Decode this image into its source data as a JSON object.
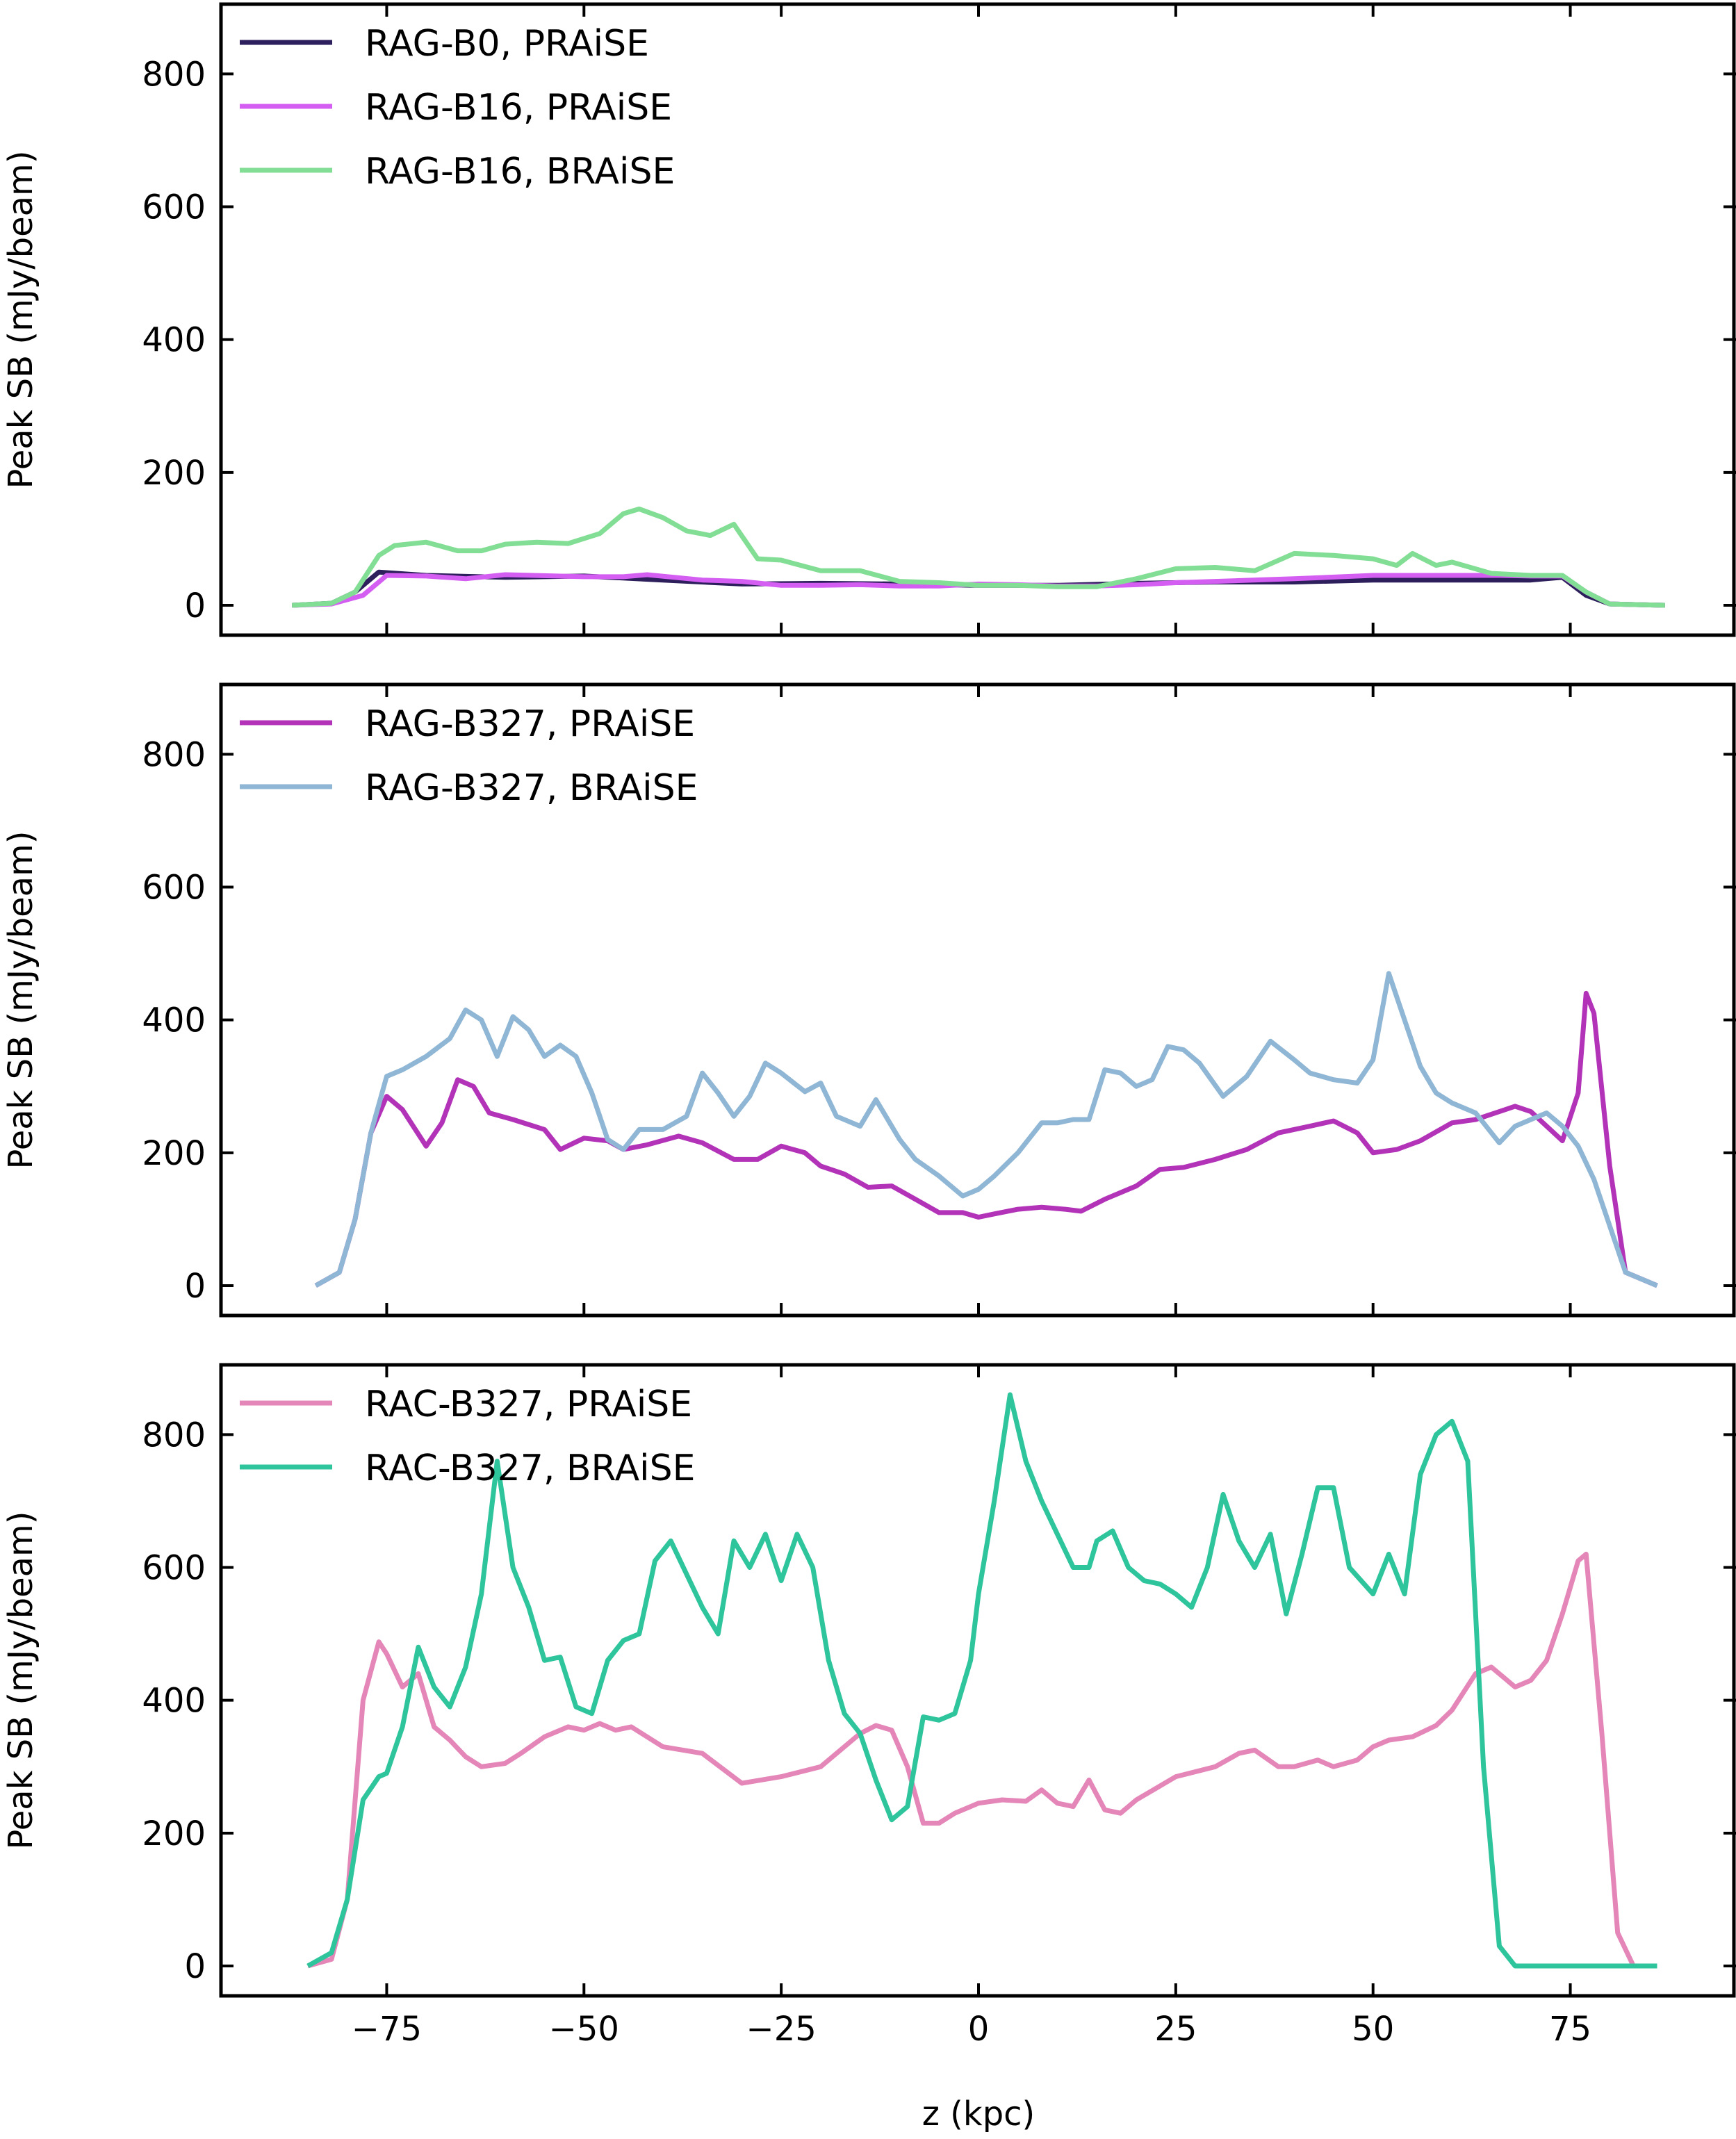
{
  "figure": {
    "xlabel": "z (kpc)",
    "ylabel": "Peak SB (mJy/beam)",
    "xticks": [
      -75,
      -50,
      -25,
      0,
      25,
      50,
      75
    ],
    "xtick_labels": [
      "−75",
      "−50",
      "−25",
      "0",
      "25",
      "50",
      "75"
    ],
    "yticks": [
      0,
      200,
      400,
      600,
      800
    ],
    "ytick_labels": [
      "0",
      "200",
      "400",
      "600",
      "800"
    ]
  },
  "chart_data": [
    {
      "type": "line",
      "xlim": [
        -96,
        96
      ],
      "ylim": [
        -45,
        905
      ],
      "legend": "upper left",
      "grid": false,
      "xlabel": "",
      "ylabel": "Peak SB (mJy/beam)",
      "series": [
        {
          "name": "RAG-B0, PRAiSE",
          "color": "#2d1e5c",
          "x": [
            -87,
            -82,
            -79,
            -76,
            -70,
            -60,
            -50,
            -40,
            -30,
            -20,
            -10,
            0,
            10,
            20,
            30,
            40,
            50,
            60,
            70,
            74,
            77,
            80,
            87
          ],
          "y": [
            0,
            3,
            20,
            50,
            45,
            42,
            44,
            38,
            32,
            33,
            32,
            30,
            30,
            33,
            35,
            35,
            38,
            38,
            38,
            42,
            15,
            2,
            0
          ]
        },
        {
          "name": "RAG-B16, PRAiSE",
          "color": "#d45ef2",
          "x": [
            -87,
            -82,
            -78,
            -75,
            -70,
            -65,
            -60,
            -50,
            -45,
            -42,
            -35,
            -30,
            -25,
            -20,
            -15,
            -10,
            -5,
            0,
            5,
            10,
            15,
            20,
            25,
            30,
            40,
            50,
            60,
            66,
            70,
            74,
            77,
            80,
            87
          ],
          "y": [
            0,
            2,
            15,
            45,
            44,
            40,
            46,
            43,
            43,
            46,
            38,
            36,
            30,
            30,
            31,
            29,
            29,
            32,
            31,
            29,
            29,
            31,
            34,
            36,
            40,
            45,
            45,
            45,
            44,
            44,
            20,
            2,
            0
          ]
        },
        {
          "name": "RAG-B16, BRAiSE",
          "color": "#82de94",
          "x": [
            -87,
            -82,
            -79,
            -76,
            -74,
            -70,
            -66,
            -63,
            -60,
            -56,
            -52,
            -48,
            -45,
            -43,
            -40,
            -37,
            -34,
            -31,
            -28,
            -25,
            -20,
            -15,
            -10,
            -5,
            0,
            5,
            10,
            15,
            20,
            25,
            30,
            35,
            40,
            45,
            50,
            53,
            55,
            58,
            60,
            65,
            70,
            74,
            77,
            80,
            87
          ],
          "y": [
            0,
            3,
            20,
            75,
            90,
            95,
            82,
            82,
            92,
            95,
            93,
            108,
            138,
            145,
            132,
            112,
            105,
            122,
            70,
            68,
            52,
            52,
            36,
            34,
            30,
            30,
            28,
            28,
            40,
            55,
            57,
            52,
            78,
            75,
            70,
            60,
            78,
            60,
            65,
            48,
            45,
            45,
            20,
            2,
            0
          ]
        }
      ]
    },
    {
      "type": "line",
      "xlim": [
        -96,
        96
      ],
      "ylim": [
        -45,
        905
      ],
      "legend": "upper left",
      "grid": false,
      "xlabel": "",
      "ylabel": "Peak SB (mJy/beam)",
      "series": [
        {
          "name": "RAG-B327, PRAiSE",
          "color": "#b232b8",
          "x": [
            -84,
            -81,
            -79,
            -77,
            -75,
            -73,
            -70,
            -68,
            -66,
            -64,
            -62,
            -59,
            -55,
            -53,
            -50,
            -47,
            -45,
            -42,
            -38,
            -35,
            -31,
            -28,
            -25,
            -22,
            -20,
            -17,
            -14,
            -11,
            -8,
            -5,
            -2,
            0,
            2,
            5,
            8,
            11,
            13,
            16,
            20,
            23,
            26,
            30,
            34,
            38,
            42,
            45,
            48,
            50,
            53,
            56,
            60,
            63,
            66,
            68,
            70,
            72,
            74,
            76,
            77,
            78,
            80,
            82,
            86
          ],
          "y": [
            0,
            20,
            100,
            230,
            285,
            265,
            210,
            245,
            310,
            300,
            260,
            250,
            235,
            205,
            222,
            218,
            205,
            212,
            225,
            215,
            190,
            190,
            210,
            200,
            180,
            168,
            148,
            150,
            130,
            110,
            110,
            103,
            108,
            115,
            118,
            115,
            112,
            130,
            150,
            175,
            178,
            190,
            205,
            230,
            240,
            248,
            230,
            200,
            205,
            218,
            245,
            250,
            262,
            270,
            262,
            240,
            218,
            290,
            440,
            410,
            180,
            20,
            0
          ]
        },
        {
          "name": "RAG-B327, BRAiSE",
          "color": "#8fb6d4",
          "x": [
            -84,
            -81,
            -79,
            -77,
            -75,
            -73,
            -70,
            -67,
            -65,
            -63,
            -61,
            -59,
            -57,
            -55,
            -53,
            -51,
            -49,
            -47,
            -45,
            -43,
            -40,
            -37,
            -35,
            -33,
            -31,
            -29,
            -27,
            -25,
            -22,
            -20,
            -18,
            -15,
            -13,
            -10,
            -8,
            -5,
            -2,
            0,
            2,
            5,
            8,
            10,
            12,
            14,
            16,
            18,
            20,
            22,
            24,
            26,
            28,
            31,
            34,
            37,
            40,
            42,
            45,
            48,
            50,
            52,
            54,
            56,
            58,
            60,
            63,
            66,
            68,
            70,
            72,
            74,
            76,
            78,
            80,
            82,
            86
          ],
          "y": [
            0,
            20,
            100,
            230,
            315,
            325,
            345,
            372,
            415,
            400,
            345,
            405,
            385,
            345,
            362,
            345,
            290,
            220,
            205,
            235,
            235,
            255,
            320,
            290,
            255,
            285,
            335,
            320,
            292,
            305,
            255,
            240,
            280,
            220,
            190,
            165,
            135,
            145,
            165,
            200,
            245,
            245,
            250,
            250,
            325,
            320,
            300,
            310,
            360,
            355,
            335,
            285,
            315,
            368,
            340,
            320,
            310,
            305,
            340,
            470,
            400,
            330,
            290,
            275,
            260,
            215,
            240,
            250,
            260,
            240,
            210,
            160,
            90,
            20,
            0
          ]
        }
      ]
    },
    {
      "type": "line",
      "xlim": [
        -96,
        96
      ],
      "ylim": [
        -45,
        905
      ],
      "legend": "upper left",
      "grid": false,
      "xlabel": "z (kpc)",
      "ylabel": "Peak SB (mJy/beam)",
      "series": [
        {
          "name": "RAC-B327, PRAiSE",
          "color": "#e586b8",
          "x": [
            -85,
            -82,
            -80,
            -78,
            -76,
            -75,
            -73,
            -71,
            -69,
            -67,
            -65,
            -63,
            -60,
            -58,
            -55,
            -52,
            -50,
            -48,
            -46,
            -44,
            -40,
            -35,
            -30,
            -25,
            -20,
            -15,
            -13,
            -11,
            -9,
            -7,
            -5,
            -3,
            0,
            3,
            6,
            8,
            10,
            12,
            14,
            16,
            18,
            20,
            25,
            30,
            33,
            35,
            38,
            40,
            43,
            45,
            48,
            50,
            52,
            55,
            58,
            60,
            63,
            65,
            68,
            70,
            72,
            74,
            76,
            77,
            79,
            81,
            83,
            86
          ],
          "y": [
            0,
            10,
            100,
            400,
            488,
            470,
            420,
            440,
            360,
            340,
            315,
            300,
            305,
            320,
            345,
            360,
            355,
            365,
            355,
            360,
            330,
            320,
            275,
            285,
            300,
            350,
            362,
            355,
            300,
            215,
            215,
            230,
            245,
            250,
            248,
            265,
            245,
            240,
            280,
            235,
            230,
            250,
            285,
            300,
            320,
            325,
            300,
            300,
            310,
            300,
            310,
            330,
            340,
            345,
            362,
            385,
            440,
            450,
            420,
            430,
            460,
            530,
            610,
            620,
            350,
            50,
            0,
            0
          ]
        },
        {
          "name": "RAC-B327, BRAiSE",
          "color": "#2ec59d",
          "x": [
            -85,
            -82,
            -80,
            -78,
            -76,
            -75,
            -73,
            -71,
            -69,
            -67,
            -65,
            -63,
            -61,
            -59,
            -57,
            -55,
            -53,
            -51,
            -49,
            -47,
            -45,
            -43,
            -41,
            -39,
            -37,
            -35,
            -33,
            -31,
            -29,
            -27,
            -25,
            -23,
            -21,
            -19,
            -17,
            -15,
            -13,
            -11,
            -9,
            -7,
            -5,
            -3,
            -1,
            0,
            2,
            4,
            6,
            8,
            10,
            12,
            14,
            15,
            17,
            19,
            21,
            23,
            25,
            27,
            29,
            31,
            33,
            35,
            37,
            39,
            41,
            43,
            45,
            47,
            50,
            52,
            54,
            56,
            58,
            60,
            62,
            64,
            66,
            68,
            70,
            72,
            74,
            76,
            77,
            79,
            81,
            83,
            86
          ],
          "y": [
            0,
            20,
            100,
            250,
            285,
            290,
            360,
            480,
            420,
            390,
            450,
            560,
            760,
            600,
            540,
            460,
            465,
            390,
            380,
            460,
            490,
            500,
            610,
            640,
            590,
            540,
            500,
            640,
            600,
            650,
            580,
            650,
            600,
            460,
            380,
            350,
            280,
            220,
            240,
            375,
            370,
            380,
            460,
            560,
            700,
            860,
            760,
            700,
            650,
            600,
            600,
            640,
            655,
            600,
            580,
            575,
            560,
            540,
            600,
            710,
            640,
            600,
            650,
            530,
            620,
            720,
            720,
            600,
            560,
            620,
            560,
            740,
            800,
            820,
            760,
            300,
            30,
            0,
            0,
            0,
            0,
            0,
            0,
            0,
            0,
            0,
            0
          ]
        }
      ]
    }
  ]
}
